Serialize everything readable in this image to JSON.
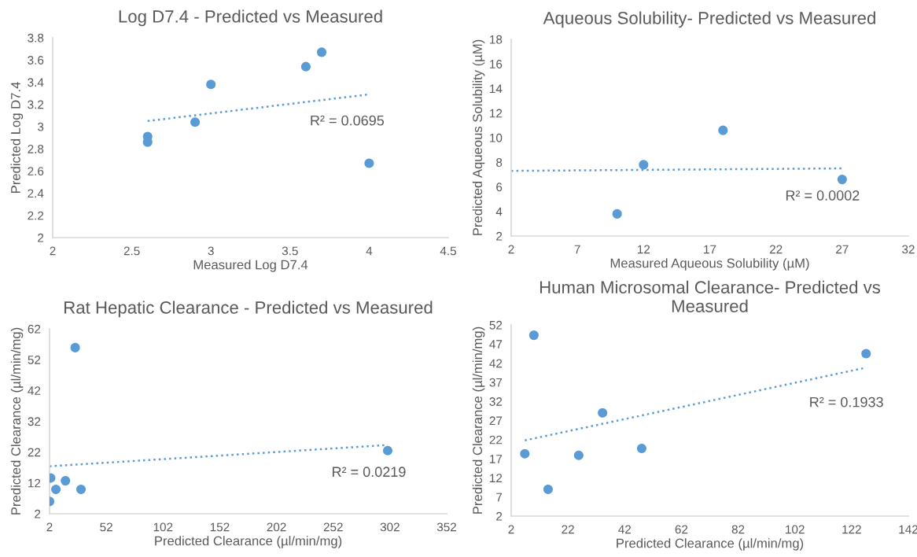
{
  "chart_data": [
    {
      "type": "scatter",
      "title": "Log D7.4 - Predicted vs Measured",
      "xlabel": "Measured Log D7.4",
      "ylabel": "Predicted Log D7.4",
      "series": [
        {
          "color": "#5b9bd5",
          "marker": "circle",
          "x": [
            2.6,
            2.6,
            2.9,
            3.0,
            3.6,
            3.7,
            4.0
          ],
          "values": [
            2.91,
            2.86,
            3.04,
            3.38,
            3.54,
            3.67,
            2.67
          ]
        },
        {
          "type": "line",
          "color": "#5b9bd5",
          "line_style": "dotted",
          "x": [
            2.6,
            4.0
          ],
          "values": [
            3.05,
            3.29
          ]
        }
      ],
      "annotations": [
        "R² = 0.0695"
      ],
      "xlim": [
        2,
        4.5
      ],
      "xticks": [
        2,
        2.5,
        3,
        3.5,
        4,
        4.5
      ],
      "ylim": [
        2,
        3.8
      ],
      "yticks": [
        2,
        2.2,
        2.4,
        2.6,
        2.8,
        3,
        3.2,
        3.4,
        3.6,
        3.8
      ],
      "grid": false,
      "legend": false
    },
    {
      "type": "scatter",
      "title": "Aqueous Solubility- Predicted vs Measured",
      "xlabel": "Measured Aqueous Solubility (µM)",
      "ylabel": "Predicted Aqueous Solubility (µM)",
      "series": [
        {
          "color": "#5b9bd5",
          "marker": "circle",
          "x": [
            10,
            12,
            18,
            27
          ],
          "values": [
            3.8,
            7.8,
            10.6,
            6.6
          ]
        },
        {
          "type": "line",
          "color": "#5b9bd5",
          "line_style": "dotted",
          "x": [
            2,
            27
          ],
          "values": [
            7.3,
            7.5
          ]
        }
      ],
      "annotations": [
        "R² = 0.0002"
      ],
      "xlim": [
        2,
        32
      ],
      "xticks": [
        2,
        7,
        12,
        17,
        22,
        27,
        32
      ],
      "ylim": [
        2,
        18
      ],
      "yticks": [
        2,
        4,
        6,
        8,
        10,
        12,
        14,
        16,
        18
      ],
      "grid": false,
      "legend": false
    },
    {
      "type": "scatter",
      "title": "Rat Hepatic Clearance - Predicted vs Measured",
      "xlabel": "Predicted Clearance (µl/min/mg)",
      "ylabel": "Predicted Clearance (µl/min/mg)",
      "series": [
        {
          "color": "#5b9bd5",
          "marker": "circle",
          "x": [
            2,
            3,
            7.6,
            16,
            24.6,
            29.7,
            300
          ],
          "values": [
            6,
            13.6,
            9.9,
            12.7,
            55.9,
            9.9,
            22.5
          ]
        },
        {
          "type": "line",
          "color": "#5b9bd5",
          "line_style": "dotted",
          "x": [
            2,
            300
          ],
          "values": [
            17.4,
            24.3
          ]
        }
      ],
      "annotations": [
        "R² = 0.0219"
      ],
      "xlim": [
        2,
        352
      ],
      "xticks": [
        2,
        52,
        102,
        152,
        202,
        252,
        302,
        352
      ],
      "ylim": [
        2,
        62
      ],
      "yticks": [
        2,
        12,
        22,
        32,
        42,
        52,
        62
      ],
      "grid": false,
      "legend": false
    },
    {
      "type": "scatter",
      "title": "Human Microsomal Clearance- Predicted vs Measured",
      "xlabel": "Predicted Clearance (µl/min/mg)",
      "ylabel": "Predicted Clearance (µl/min/mg)",
      "series": [
        {
          "color": "#5b9bd5",
          "marker": "circle",
          "x": [
            6.8,
            10,
            15,
            25.8,
            34.2,
            48,
            127.1
          ],
          "values": [
            18.3,
            49.3,
            9,
            17.9,
            29,
            19.7,
            44.5
          ]
        },
        {
          "type": "line",
          "color": "#5b9bd5",
          "line_style": "dotted",
          "x": [
            6.8,
            126.9
          ],
          "values": [
            21.8,
            40.8
          ]
        }
      ],
      "annotations": [
        "R² = 0.1933"
      ],
      "xlim": [
        2,
        142
      ],
      "xticks": [
        2,
        22,
        42,
        62,
        82,
        102,
        122,
        142
      ],
      "ylim": [
        2,
        52
      ],
      "yticks": [
        2,
        7,
        12,
        17,
        22,
        27,
        32,
        37,
        42,
        47,
        52
      ],
      "grid": false,
      "legend": false
    }
  ]
}
